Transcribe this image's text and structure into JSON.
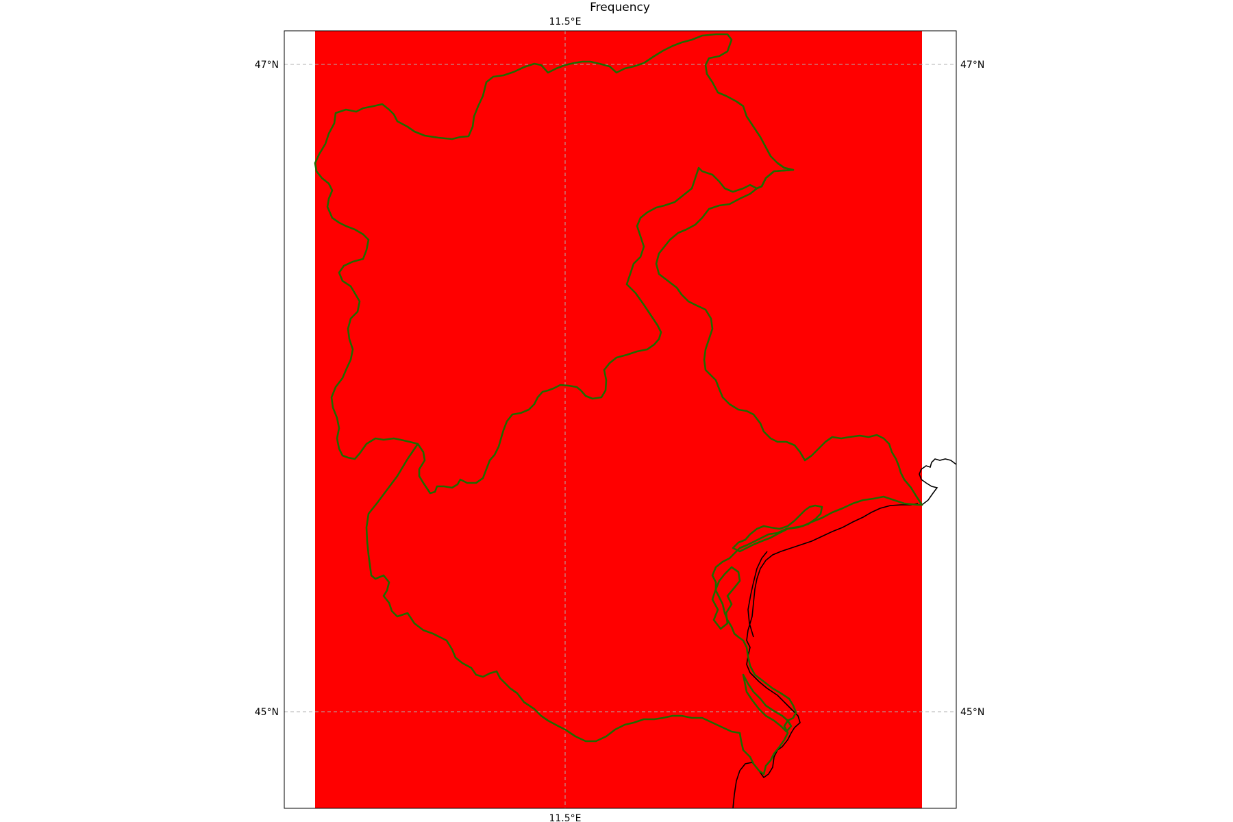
{
  "figure": {
    "title": "Frequency"
  },
  "map": {
    "fill_color": "#ff0000",
    "region_border_color": "#1f6b00",
    "coastline_color": "#000000",
    "grid_color": "#b0b0b0",
    "lon_tick_top": "11.5°E",
    "lon_tick_bottom": "11.5°E",
    "lat_tick_47_left": "47°N",
    "lat_tick_47_right": "47°N",
    "lat_tick_45_left": "45°N",
    "lat_tick_45_right": "45°N"
  }
}
